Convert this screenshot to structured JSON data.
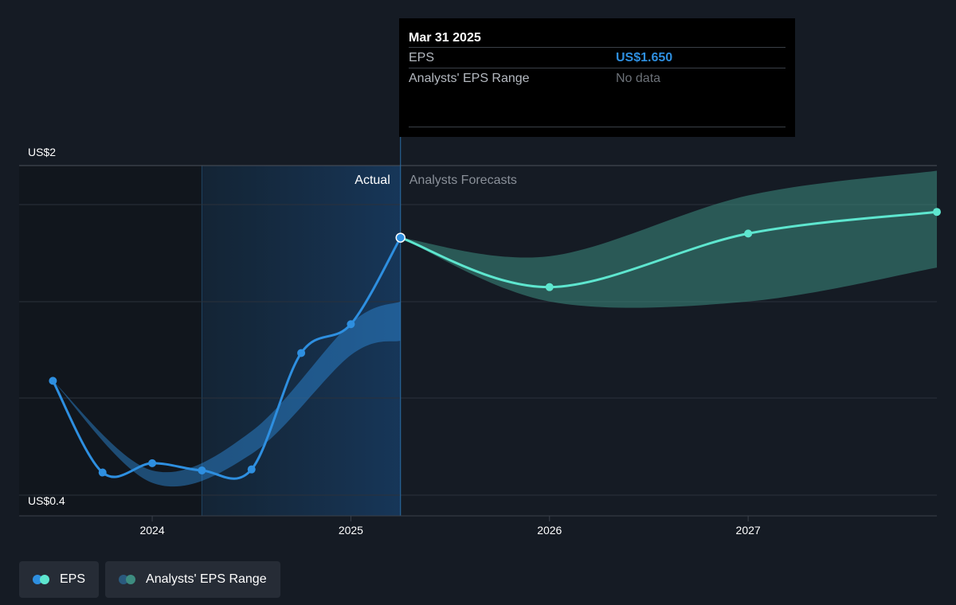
{
  "chart_data": {
    "type": "line",
    "y_axis": {
      "min_label": "US$0.4",
      "max_label": "US$2",
      "ylim": [
        0.4,
        2.0
      ]
    },
    "x_axis": {
      "ticks": [
        "2024",
        "2025",
        "2026",
        "2027"
      ],
      "tick_values": [
        2024,
        2025,
        2026,
        2027
      ],
      "xlim": [
        2023.33,
        2027.95
      ]
    },
    "divider_x": 2025.25,
    "highlight_start_x": 2024.25,
    "region_labels": {
      "actual": "Actual",
      "forecast": "Analysts Forecasts"
    },
    "series": [
      {
        "name": "EPS",
        "kind": "actual",
        "color": "#2e8fe0",
        "points": [
          [
            2023.5,
            0.955
          ],
          [
            2023.75,
            0.51
          ],
          [
            2024.0,
            0.555
          ],
          [
            2024.25,
            0.52
          ],
          [
            2024.5,
            0.525
          ],
          [
            2024.75,
            1.09
          ],
          [
            2025.0,
            1.23
          ],
          [
            2025.25,
            1.65
          ]
        ]
      },
      {
        "name": "EPS",
        "kind": "forecast",
        "color": "#5ee6cf",
        "points": [
          [
            2025.25,
            1.65
          ],
          [
            2026.0,
            1.41
          ],
          [
            2027.0,
            1.67
          ],
          [
            2027.95,
            1.775
          ]
        ]
      }
    ],
    "ranges": [
      {
        "name": "Analysts' EPS Range",
        "kind": "past",
        "color": "#2e8fe0",
        "upper": [
          [
            2023.5,
            0.955
          ],
          [
            2024.0,
            0.52
          ],
          [
            2024.5,
            0.71
          ],
          [
            2025.0,
            1.235
          ],
          [
            2025.25,
            1.34
          ]
        ],
        "lower": [
          [
            2023.5,
            0.955
          ],
          [
            2024.0,
            0.46
          ],
          [
            2024.5,
            0.6
          ],
          [
            2025.0,
            1.08
          ],
          [
            2025.25,
            1.15
          ]
        ]
      },
      {
        "name": "Analysts' EPS Range",
        "kind": "forecast",
        "color": "#3d8c80",
        "upper": [
          [
            2025.25,
            1.65
          ],
          [
            2026.0,
            1.56
          ],
          [
            2027.0,
            1.855
          ],
          [
            2027.95,
            1.975
          ]
        ],
        "lower": [
          [
            2025.25,
            1.65
          ],
          [
            2026.0,
            1.34
          ],
          [
            2027.0,
            1.34
          ],
          [
            2027.95,
            1.505
          ]
        ]
      }
    ],
    "legend": [
      {
        "label": "EPS",
        "colors": [
          "#2e8fe0",
          "#5ee6cf"
        ]
      },
      {
        "label": "Analysts' EPS Range",
        "colors": [
          "#2a5a7e",
          "#3d8c80"
        ]
      }
    ]
  },
  "tooltip": {
    "date": "Mar 31 2025",
    "rows": [
      {
        "label": "EPS",
        "value": "US$1.650"
      },
      {
        "label": "Analysts' EPS Range",
        "value": "No data"
      }
    ]
  }
}
